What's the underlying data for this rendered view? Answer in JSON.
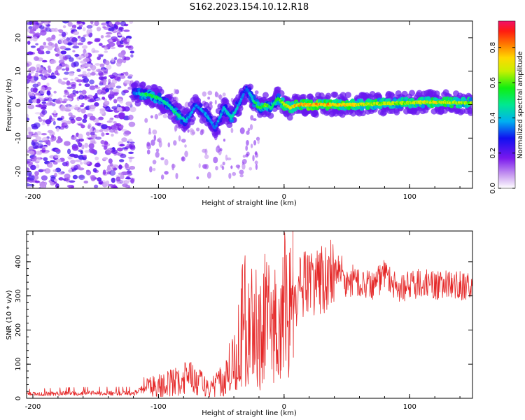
{
  "title": "S162.2023.154.10.12.R18",
  "colors": {
    "snr_line": "#e52828",
    "background": "#ffffff",
    "axis": "#000000",
    "low_scatter": "#8a2be2"
  },
  "chart_data": [
    {
      "type": "heatmap",
      "title": "S162.2023.154.10.12.R18",
      "xlabel": "Height of straight line (km)",
      "ylabel": "Frequency (Hz)",
      "xlim": [
        -205,
        150
      ],
      "ylim": [
        -25,
        25
      ],
      "x_ticks": [
        -200,
        -100,
        0,
        100
      ],
      "x_tick_labels": [
        "-200",
        "-100",
        "0",
        "100"
      ],
      "y_ticks": [
        -20,
        -10,
        0,
        10,
        20
      ],
      "y_tick_labels": [
        "-20",
        "-10",
        "0",
        "10",
        "20"
      ],
      "colorbar": {
        "label": "Normalized spectral amplitude",
        "range": [
          0,
          0.95
        ],
        "ticks": [
          0,
          0.2,
          0.4,
          0.6,
          0.8
        ],
        "tick_labels": [
          "0.0",
          "0.2",
          "0.4",
          "0.6",
          "0.8"
        ],
        "colormap": "rainbow"
      },
      "ridge": {
        "x": [
          -120,
          -110,
          -100,
          -92,
          -85,
          -78,
          -70,
          -62,
          -55,
          -48,
          -42,
          -36,
          -30,
          -24,
          -20,
          -15,
          -10,
          -5,
          0,
          5,
          10,
          30,
          60,
          90,
          120,
          150
        ],
        "y": [
          3.5,
          3,
          2,
          0,
          -3,
          -5,
          0,
          -3,
          -7,
          -1,
          -4,
          0,
          5,
          1,
          -1,
          0,
          -1,
          2,
          0,
          -1,
          0,
          0,
          0,
          0.5,
          0.8,
          0.5
        ],
        "amplitude": [
          0.3,
          0.55,
          0.5,
          0.45,
          0.5,
          0.4,
          0.35,
          0.4,
          0.35,
          0.4,
          0.45,
          0.4,
          0.3,
          0.5,
          0.55,
          0.6,
          0.5,
          0.55,
          0.65,
          0.7,
          0.75,
          0.8,
          0.7,
          0.65,
          0.7,
          0.65
        ]
      },
      "noise_region": {
        "x_range": [
          -205,
          -120
        ],
        "y_range": [
          -25,
          25
        ],
        "amplitude": 0.15
      }
    },
    {
      "type": "line",
      "title": "",
      "xlabel": "Height of straight line (km)",
      "ylabel": "SNR (10 * v/v)",
      "xlim": [
        -205,
        150
      ],
      "ylim": [
        0,
        490
      ],
      "x_ticks": [
        -200,
        -100,
        0,
        100
      ],
      "x_tick_labels": [
        "-200",
        "-100",
        "0",
        "100"
      ],
      "y_ticks": [
        0,
        100,
        200,
        300,
        400
      ],
      "y_tick_labels": [
        "0",
        "100",
        "200",
        "300",
        "400"
      ],
      "series": [
        {
          "name": "SNR",
          "x": [
            -205,
            -180,
            -150,
            -120,
            -110,
            -100,
            -90,
            -80,
            -75,
            -70,
            -60,
            -50,
            -40,
            -35,
            -30,
            -25,
            -20,
            -15,
            -10,
            -5,
            0,
            5,
            10,
            15,
            20,
            25,
            30,
            40,
            45,
            50,
            55,
            60,
            70,
            80,
            90,
            100,
            110,
            120,
            130,
            140,
            150
          ],
          "y": [
            12,
            14,
            15,
            15,
            30,
            40,
            45,
            55,
            70,
            50,
            30,
            50,
            120,
            200,
            250,
            210,
            220,
            230,
            200,
            220,
            260,
            320,
            300,
            340,
            330,
            340,
            350,
            370,
            390,
            330,
            350,
            340,
            330,
            360,
            320,
            330,
            340,
            330,
            335,
            330,
            330
          ],
          "spike": {
            "x": 7,
            "y": 490
          }
        }
      ]
    }
  ]
}
